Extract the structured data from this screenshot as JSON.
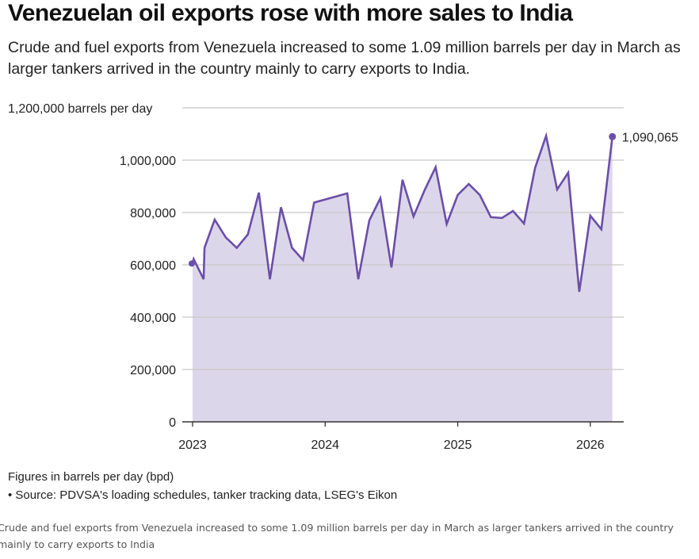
{
  "header": {
    "title": "Venezuelan oil exports rose with more sales to India",
    "subtitle": "Crude and fuel exports from Venezuela increased to some 1.09 million barrels per day in March as larger tankers arrived in the country mainly to carry exports to India."
  },
  "chart_data": {
    "type": "area",
    "title": "Venezuelan oil exports rose with more sales to India",
    "ylabel": "barrels per day",
    "ylim": [
      0,
      1200000
    ],
    "yticks": [
      {
        "value": 0,
        "label": "0"
      },
      {
        "value": 200000,
        "label": "200,000"
      },
      {
        "value": 400000,
        "label": "400,000"
      },
      {
        "value": 600000,
        "label": "600,000"
      },
      {
        "value": 800000,
        "label": "800,000"
      },
      {
        "value": 1000000,
        "label": "1,000,000"
      },
      {
        "value": 1200000,
        "label": "1,200,000 barrels per day"
      }
    ],
    "xticks": [
      {
        "month": 0,
        "label": "2023"
      },
      {
        "month": 12,
        "label": "2024"
      },
      {
        "month": 24,
        "label": "2025"
      },
      {
        "month": 36,
        "label": "2026"
      }
    ],
    "x_unit": "months since Jan 2023",
    "color": "#6a4fa8",
    "fill": "#dcd6ea",
    "series": [
      {
        "name": "Crude and fuel exports",
        "points": [
          [
            0,
            605000
          ],
          [
            0.1,
            622000
          ],
          [
            1,
            545000
          ],
          [
            1.08,
            665000
          ],
          [
            2,
            773000
          ],
          [
            3,
            705000
          ],
          [
            4,
            665000
          ],
          [
            5,
            716000
          ],
          [
            6,
            876000
          ],
          [
            7,
            545000
          ],
          [
            8,
            820000
          ],
          [
            9,
            665000
          ],
          [
            10,
            618000
          ],
          [
            11,
            838000
          ],
          [
            14,
            873000
          ],
          [
            15,
            545000
          ],
          [
            16,
            770000
          ],
          [
            17,
            855000
          ],
          [
            18,
            590000
          ],
          [
            19,
            925000
          ],
          [
            20,
            785000
          ],
          [
            21,
            885000
          ],
          [
            22,
            973000
          ],
          [
            23,
            756000
          ],
          [
            24,
            867000
          ],
          [
            25,
            909000
          ],
          [
            26,
            867000
          ],
          [
            27,
            782000
          ],
          [
            28,
            779000
          ],
          [
            29,
            806000
          ],
          [
            30,
            758000
          ],
          [
            31,
            970000
          ],
          [
            32,
            1093000
          ],
          [
            33,
            888000
          ],
          [
            34,
            952000
          ],
          [
            35,
            497000
          ],
          [
            36,
            788000
          ],
          [
            37,
            736000
          ],
          [
            38,
            1090065
          ]
        ]
      }
    ],
    "annotations": [
      {
        "label": "1,090,065"
      }
    ]
  },
  "footer": {
    "note": "Figures in barrels per day (bpd)",
    "source": "• Source: PDVSA's loading schedules, tanker tracking data, LSEG's Eikon",
    "caption": "Crude and fuel exports from Venezuela increased to some 1.09 million barrels per day in March as larger tankers arrived in the country mainly to carry exports to India"
  }
}
